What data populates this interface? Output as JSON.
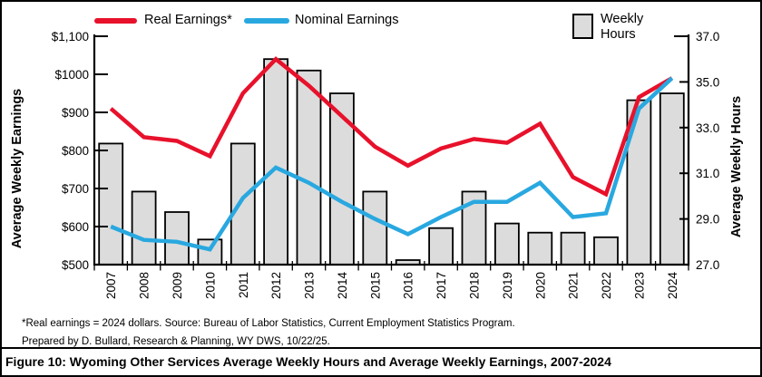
{
  "figure": {
    "caption": "Figure 10: Wyoming Other Services Average Weekly Hours and Average Weekly Earnings, 2007-2024",
    "footnote_lines": [
      "*Real earnings = 2024 dollars. Source: Bureau of Labor Statistics, Current Employment Statistics Program.",
      "Prepared by D. Bullard, Research & Planning, WY DWS, 10/22/25."
    ]
  },
  "legend": {
    "real_label": "Real Earnings*",
    "nominal_label": "Nominal Earnings",
    "hours_label_line1": "Weekly",
    "hours_label_line2": "Hours"
  },
  "colors": {
    "real_line": "#e8112b",
    "nominal_line": "#29a8e0",
    "bar_fill": "#dcdcdc",
    "bar_border": "#000000",
    "axis": "#000000"
  },
  "chart_data": {
    "type": "combo",
    "categories": [
      "2007",
      "2008",
      "2009",
      "2010",
      "2011",
      "2012",
      "2013",
      "2014",
      "2015",
      "2016",
      "2017",
      "2018",
      "2019",
      "2020",
      "2021",
      "2022",
      "2023",
      "2024"
    ],
    "series": [
      {
        "name": "Real Earnings*",
        "type": "line",
        "axis": "left",
        "color_key": "real_line",
        "values": [
          910,
          835,
          825,
          785,
          950,
          1040,
          970,
          890,
          810,
          760,
          805,
          830,
          820,
          870,
          730,
          685,
          940,
          990
        ]
      },
      {
        "name": "Nominal Earnings",
        "type": "line",
        "axis": "left",
        "color_key": "nominal_line",
        "values": [
          600,
          565,
          560,
          540,
          675,
          755,
          715,
          665,
          620,
          580,
          625,
          665,
          665,
          715,
          625,
          635,
          910,
          990
        ]
      },
      {
        "name": "Weekly Hours",
        "type": "bar",
        "axis": "right",
        "color_key": "bar_fill",
        "values": [
          32.3,
          30.2,
          29.3,
          28.1,
          32.3,
          36.0,
          35.5,
          34.5,
          30.2,
          27.2,
          28.6,
          30.2,
          28.8,
          28.4,
          28.4,
          28.2,
          34.2,
          34.5
        ]
      }
    ],
    "left_axis": {
      "label": "Average Weekly Earnings",
      "min": 500,
      "max": 1100,
      "ticks": [
        {
          "v": 500,
          "label": "$500"
        },
        {
          "v": 600,
          "label": "$600"
        },
        {
          "v": 700,
          "label": "$700"
        },
        {
          "v": 800,
          "label": "$800"
        },
        {
          "v": 900,
          "label": "$900"
        },
        {
          "v": 1000,
          "label": "$1000"
        },
        {
          "v": 1100,
          "label": "$1,100"
        }
      ]
    },
    "right_axis": {
      "label": "Average Weekly Hours",
      "min": 27,
      "max": 37,
      "ticks": [
        {
          "v": 27,
          "label": "27.0"
        },
        {
          "v": 29,
          "label": "29.0"
        },
        {
          "v": 31,
          "label": "31.0"
        },
        {
          "v": 33,
          "label": "33.0"
        },
        {
          "v": 35,
          "label": "35.0"
        },
        {
          "v": 37,
          "label": "37.0"
        }
      ]
    },
    "grid": false,
    "legend_position": "top"
  }
}
